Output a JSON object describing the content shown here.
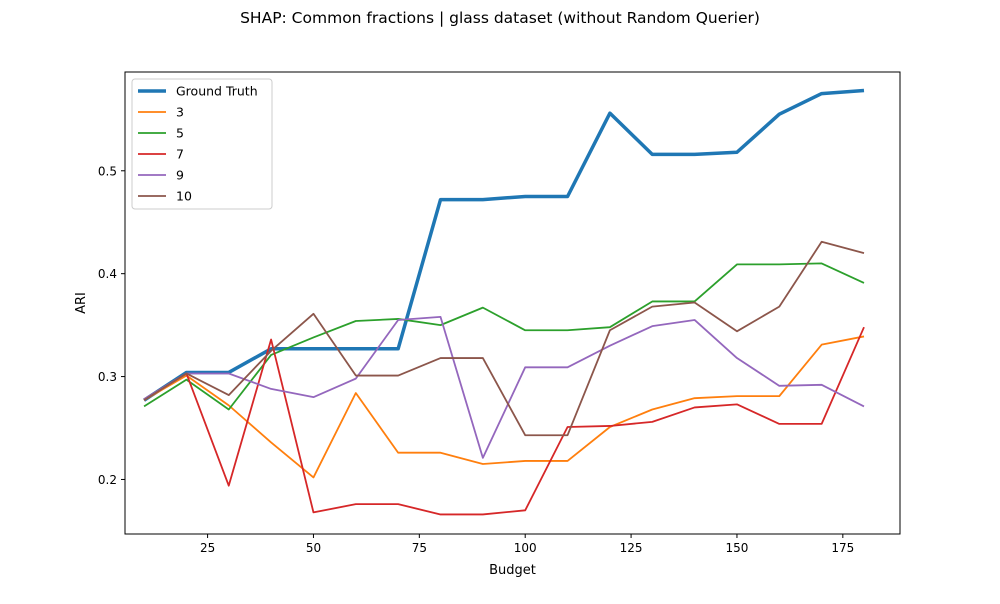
{
  "chart_data": {
    "type": "line",
    "title": "SHAP: Common fractions | glass dataset (without Random Querier)",
    "xlabel": "Budget",
    "ylabel": "ARI",
    "xlim": [
      5.5,
      188.5
    ],
    "ylim": [
      0.147,
      0.596
    ],
    "xticks": [
      25,
      50,
      75,
      100,
      125,
      150,
      175
    ],
    "yticks": [
      0.2,
      0.3,
      0.4,
      0.5
    ],
    "xtick_labels": [
      "25",
      "50",
      "75",
      "100",
      "125",
      "150",
      "175"
    ],
    "ytick_labels": [
      "0.2",
      "0.3",
      "0.4",
      "0.5"
    ],
    "grid": false,
    "legend_position": "top-left",
    "x": [
      10,
      20,
      30,
      40,
      50,
      60,
      70,
      80,
      90,
      100,
      110,
      120,
      130,
      140,
      150,
      160,
      170,
      180
    ],
    "series": [
      {
        "name": "Ground Truth",
        "color": "#1f77b4",
        "width": 3.5,
        "values": [
          0.277,
          0.304,
          0.304,
          0.327,
          0.327,
          0.327,
          0.327,
          0.472,
          0.472,
          0.475,
          0.475,
          0.556,
          0.516,
          0.516,
          0.518,
          0.555,
          0.575,
          0.578
        ]
      },
      {
        "name": "3",
        "color": "#ff7f0e",
        "width": 1.8,
        "values": [
          0.277,
          0.301,
          0.272,
          0.236,
          0.202,
          0.284,
          0.226,
          0.226,
          0.215,
          0.218,
          0.218,
          0.251,
          0.268,
          0.279,
          0.281,
          0.281,
          0.331,
          0.339
        ]
      },
      {
        "name": "5",
        "color": "#2ca02c",
        "width": 1.8,
        "values": [
          0.271,
          0.297,
          0.268,
          0.321,
          0.338,
          0.354,
          0.356,
          0.35,
          0.367,
          0.345,
          0.345,
          0.348,
          0.373,
          0.373,
          0.409,
          0.409,
          0.41,
          0.391
        ]
      },
      {
        "name": "7",
        "color": "#d62728",
        "width": 1.8,
        "values": [
          0.278,
          0.303,
          0.194,
          0.336,
          0.168,
          0.176,
          0.176,
          0.166,
          0.166,
          0.17,
          0.251,
          0.252,
          0.256,
          0.27,
          0.273,
          0.254,
          0.254,
          0.348
        ]
      },
      {
        "name": "9",
        "color": "#9467bd",
        "width": 1.8,
        "values": [
          0.278,
          0.303,
          0.303,
          0.288,
          0.28,
          0.298,
          0.355,
          0.358,
          0.221,
          0.309,
          0.309,
          0.33,
          0.349,
          0.355,
          0.318,
          0.291,
          0.292,
          0.271
        ]
      },
      {
        "name": "10",
        "color": "#8c564b",
        "width": 1.8,
        "values": [
          0.277,
          0.303,
          0.282,
          0.325,
          0.361,
          0.301,
          0.301,
          0.318,
          0.318,
          0.243,
          0.243,
          0.345,
          0.368,
          0.372,
          0.344,
          0.368,
          0.431,
          0.42
        ]
      }
    ]
  }
}
